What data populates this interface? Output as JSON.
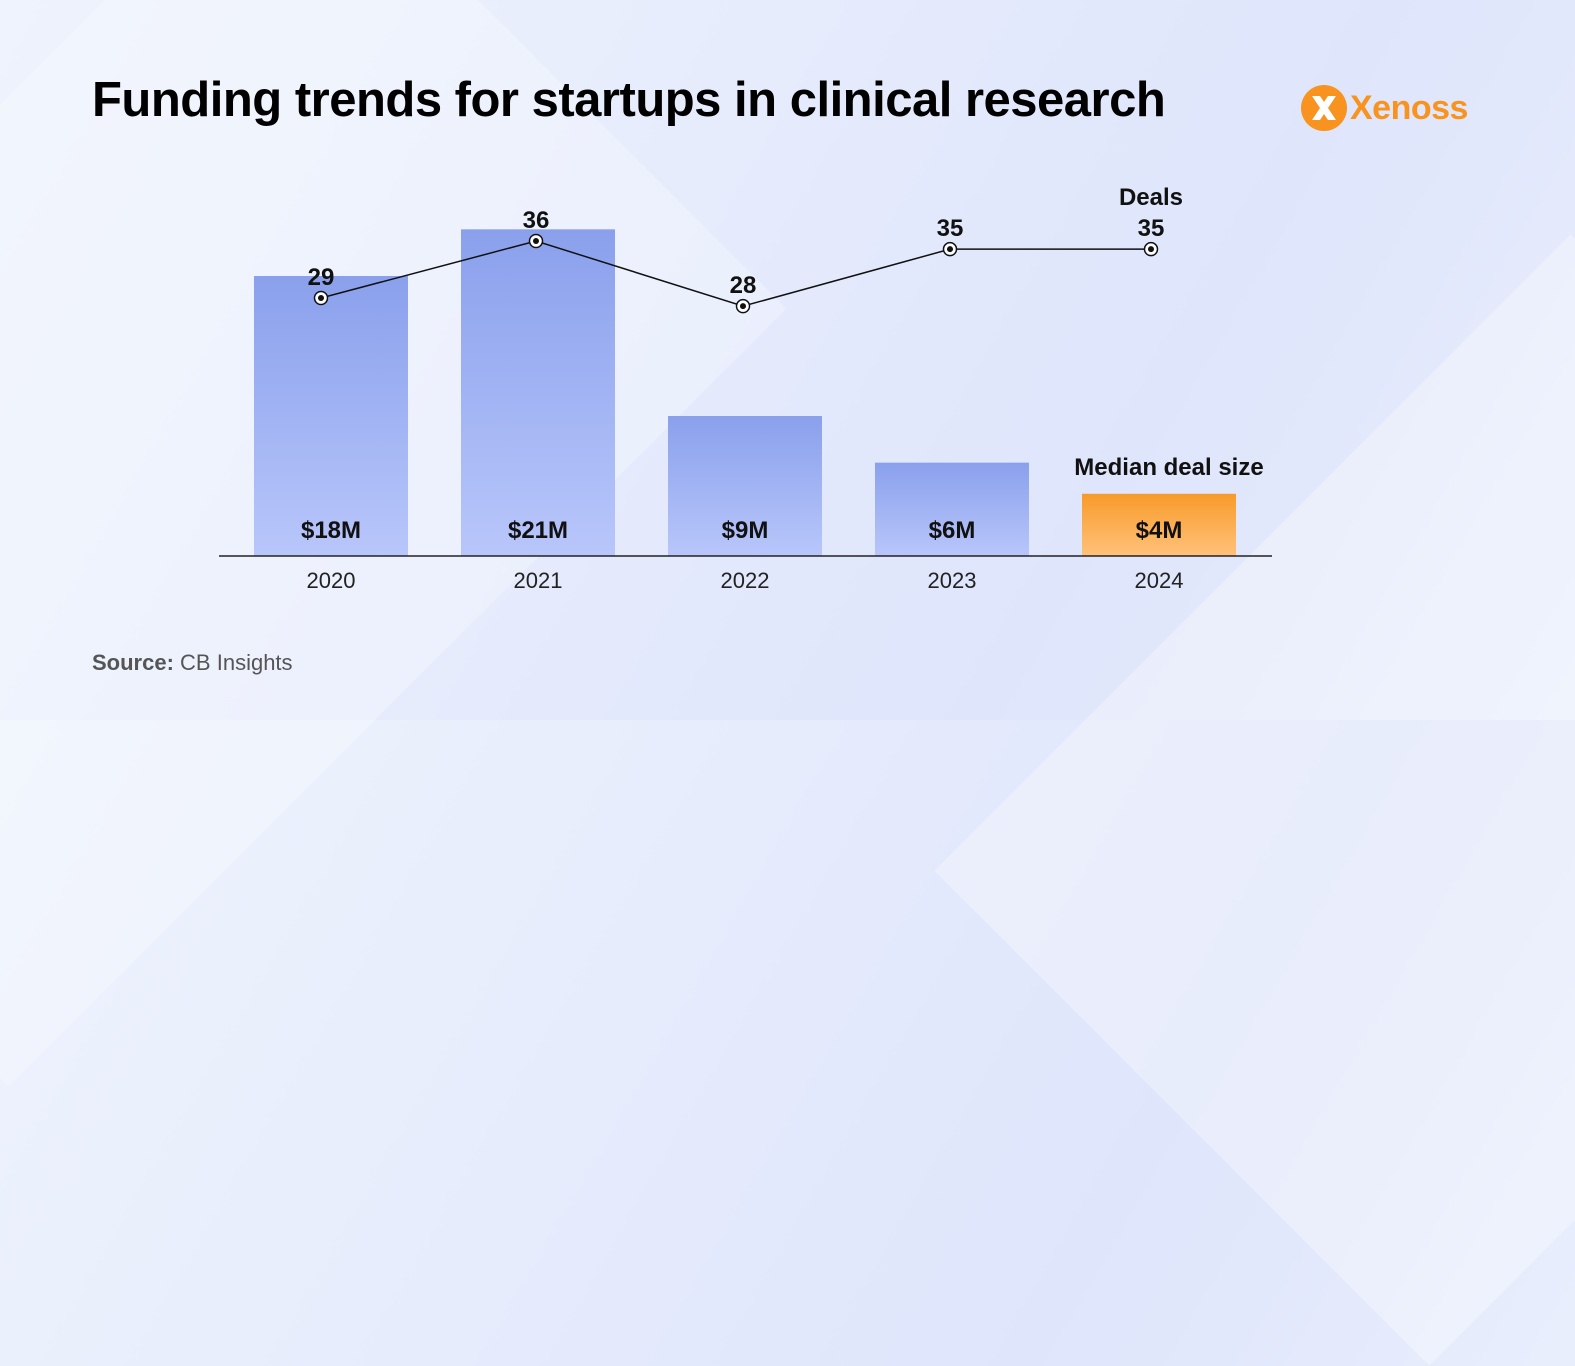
{
  "title": "Funding trends for startups in clinical research",
  "logo": {
    "text": "Xenoss"
  },
  "source": {
    "label": "Source:",
    "text": "CB Insights"
  },
  "colors": {
    "bar_top": "#8aa0ec",
    "bar_bottom": "#b8c6fa",
    "highlight_top": "#f89a2a",
    "highlight_bottom": "#ffc27a",
    "brand": "#f8931f"
  },
  "chart_data": {
    "type": "bar",
    "categories": [
      "2020",
      "2021",
      "2022",
      "2023",
      "2024"
    ],
    "series": [
      {
        "name": "Median deal size",
        "unit": "$M",
        "values": [
          18,
          21,
          9,
          6,
          4
        ],
        "labels": [
          "$18M",
          "$21M",
          "$9M",
          "$6M",
          "$4M"
        ],
        "highlight_index": 4
      },
      {
        "name": "Deals",
        "type": "line",
        "values": [
          29,
          36,
          28,
          35,
          35
        ],
        "labels": [
          "29",
          "36",
          "28",
          "35",
          "35"
        ]
      }
    ],
    "annotations": {
      "deals_label": "Deals",
      "median_label": "Median deal size"
    },
    "title": "Funding trends for startups in clinical research",
    "xlabel": "",
    "ylabel": "",
    "grid": false
  }
}
